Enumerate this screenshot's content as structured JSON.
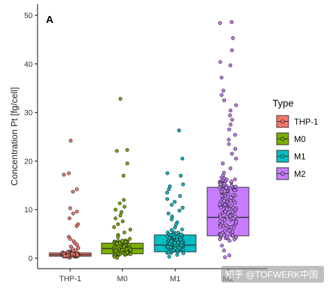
{
  "chart_data": {
    "type": "box",
    "panel_label": "A",
    "xlabel": "",
    "ylabel": "Concentration Pt [fg/cell]",
    "ylim": [
      0,
      50
    ],
    "yticks": [
      0,
      10,
      20,
      30,
      40,
      50
    ],
    "grid": false,
    "categories": [
      "THP-1",
      "M0",
      "M1",
      "M2"
    ],
    "legend": {
      "title": "Type",
      "position": "right",
      "entries": [
        "THP-1",
        "M0",
        "M1",
        "M2"
      ]
    },
    "colors": {
      "THP-1": "#F8766D",
      "M0": "#7CAE00",
      "M1": "#00BFC4",
      "M2": "#C77CFF"
    },
    "series": [
      {
        "name": "THP-1",
        "box": {
          "q1": 0.4,
          "median": 0.7,
          "q3": 1.1
        },
        "points": [
          24.2,
          17.5,
          17.2,
          14.2,
          13.7,
          10.3,
          9.6,
          9.2,
          8.2,
          7.0,
          6.6,
          4.4,
          4.0,
          3.5,
          3.1,
          2.7,
          2.4,
          2.1,
          1.9,
          1.6,
          1.4,
          1.2,
          1.0,
          0.9,
          0.8,
          0.6,
          0.5,
          0.3,
          0.2,
          0.1
        ]
      },
      {
        "name": "M0",
        "box": {
          "q1": 0.9,
          "median": 2.0,
          "q3": 3.1
        },
        "points": [
          32.8,
          22.3,
          22.1,
          19.5,
          17.0,
          12.0,
          11.3,
          10.6,
          10.0,
          9.5,
          8.8,
          8.2,
          7.6,
          7.0,
          6.4,
          5.9,
          5.3,
          4.8,
          4.4,
          4.0,
          3.6,
          3.2,
          2.9,
          2.6,
          2.3,
          2.0,
          1.8,
          1.5,
          1.2,
          1.0,
          0.7,
          0.5,
          0.3,
          0.1
        ]
      },
      {
        "name": "M1",
        "box": {
          "q1": 1.3,
          "median": 2.7,
          "q3": 4.8
        },
        "points": [
          26.3,
          20.5,
          17.5,
          17.0,
          15.2,
          14.8,
          14.2,
          13.5,
          12.8,
          12.2,
          11.6,
          11.0,
          10.4,
          9.8,
          9.2,
          8.6,
          8.0,
          7.4,
          6.9,
          6.3,
          5.8,
          5.3,
          4.8,
          4.3,
          3.9,
          3.5,
          3.1,
          2.7,
          2.3,
          1.9,
          1.5,
          1.1,
          0.7,
          0.3
        ]
      },
      {
        "name": "M2",
        "box": {
          "q1": 4.6,
          "median": 8.4,
          "q3": 14.6
        },
        "points": [
          48.6,
          48.4,
          45.3,
          42.8,
          40.4,
          39.7,
          37.2,
          34.5,
          33.6,
          32.5,
          31.5,
          30.4,
          29.4,
          28.5,
          27.5,
          26.5,
          25.4,
          24.4,
          23.5,
          22.5,
          21.5,
          20.5,
          19.5,
          18.5,
          17.6,
          16.6,
          15.6,
          14.6,
          13.6,
          12.6,
          11.6,
          10.6,
          9.6,
          8.6,
          7.6,
          6.6,
          5.6,
          4.6,
          3.6,
          2.6,
          1.6,
          0.6,
          0.2
        ]
      }
    ]
  },
  "watermark": "知乎 @TOFWERK中国"
}
